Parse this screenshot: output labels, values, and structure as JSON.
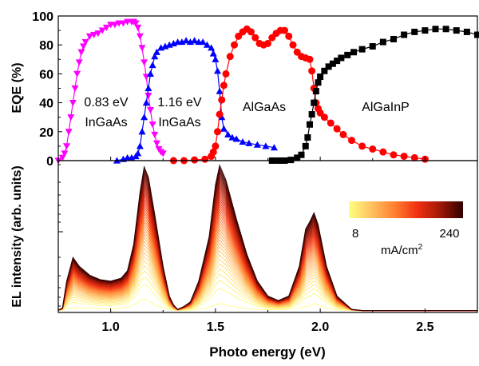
{
  "chart_data": [
    {
      "type": "scatter",
      "panel": "top",
      "ylabel": "EQE (%)",
      "xlim": [
        0.75,
        2.75
      ],
      "ylim": [
        0,
        100
      ],
      "yticks": [
        0,
        20,
        40,
        60,
        80,
        100
      ],
      "grid": false,
      "annotations": [
        {
          "lines": [
            "0.83 eV",
            "InGaAs"
          ]
        },
        {
          "lines": [
            "1.16 eV",
            "InGaAs"
          ]
        },
        {
          "lines": [
            "AlGaAs"
          ]
        },
        {
          "lines": [
            "AlGaInP"
          ]
        }
      ],
      "series": [
        {
          "color": "#ff00ff",
          "marker": "triangle-down",
          "x": [
            0.75,
            0.77,
            0.78,
            0.79,
            0.8,
            0.81,
            0.82,
            0.83,
            0.84,
            0.85,
            0.86,
            0.87,
            0.88,
            0.9,
            0.92,
            0.94,
            0.96,
            0.98,
            1.0,
            1.02,
            1.04,
            1.06,
            1.08,
            1.1,
            1.11,
            1.12,
            1.13,
            1.14,
            1.15,
            1.16,
            1.17,
            1.18,
            1.19,
            1.2,
            1.21,
            1.22,
            1.23,
            1.24,
            1.25
          ],
          "y": [
            0,
            2,
            5,
            10,
            20,
            30,
            40,
            50,
            60,
            68,
            75,
            79,
            82,
            86,
            87,
            88,
            90,
            92,
            94,
            94,
            95,
            95,
            96,
            96,
            96,
            95,
            92,
            86,
            78,
            68,
            58,
            45,
            35,
            25,
            18,
            12,
            8,
            6,
            5
          ]
        },
        {
          "color": "#0000ff",
          "marker": "triangle-up",
          "x": [
            1.03,
            1.06,
            1.08,
            1.1,
            1.12,
            1.13,
            1.14,
            1.15,
            1.16,
            1.17,
            1.18,
            1.19,
            1.2,
            1.21,
            1.22,
            1.24,
            1.26,
            1.28,
            1.3,
            1.32,
            1.34,
            1.36,
            1.38,
            1.4,
            1.42,
            1.44,
            1.46,
            1.48,
            1.49,
            1.5,
            1.51,
            1.52,
            1.53,
            1.54,
            1.56,
            1.58,
            1.6,
            1.63,
            1.66,
            1.7,
            1.74,
            1.78
          ],
          "y": [
            0,
            1,
            2,
            2,
            3,
            5,
            10,
            20,
            30,
            40,
            50,
            60,
            66,
            72,
            75,
            78,
            79,
            80,
            81,
            82,
            82,
            83,
            82,
            83,
            82,
            82,
            80,
            78,
            74,
            70,
            62,
            48,
            30,
            22,
            18,
            16,
            15,
            13,
            12,
            11,
            10,
            9
          ]
        },
        {
          "color": "#ff0000",
          "marker": "circle",
          "x": [
            1.3,
            1.35,
            1.4,
            1.45,
            1.48,
            1.49,
            1.5,
            1.51,
            1.52,
            1.53,
            1.54,
            1.55,
            1.57,
            1.59,
            1.61,
            1.63,
            1.65,
            1.67,
            1.69,
            1.71,
            1.73,
            1.75,
            1.77,
            1.79,
            1.81,
            1.83,
            1.85,
            1.87,
            1.89,
            1.91,
            1.93,
            1.95,
            1.96,
            1.97,
            1.98,
            1.99,
            2.0,
            2.02,
            2.05,
            2.08,
            2.11,
            2.15,
            2.2,
            2.25,
            2.3,
            2.35,
            2.4,
            2.45,
            2.5
          ],
          "y": [
            0,
            0,
            0.5,
            1,
            3,
            6,
            10,
            20,
            32,
            42,
            52,
            60,
            72,
            80,
            86,
            89,
            91,
            89,
            85,
            81,
            80,
            81,
            85,
            88,
            90,
            90,
            86,
            80,
            75,
            72,
            71,
            70,
            62,
            50,
            40,
            36,
            33,
            30,
            26,
            22,
            18,
            14,
            10,
            8,
            6,
            4,
            3,
            2,
            1
          ]
        },
        {
          "color": "#000000",
          "marker": "square",
          "x": [
            1.77,
            1.8,
            1.83,
            1.86,
            1.89,
            1.91,
            1.93,
            1.94,
            1.95,
            1.96,
            1.97,
            1.98,
            1.99,
            2.0,
            2.02,
            2.04,
            2.06,
            2.08,
            2.1,
            2.13,
            2.16,
            2.2,
            2.25,
            2.3,
            2.35,
            2.4,
            2.45,
            2.5,
            2.55,
            2.6,
            2.65,
            2.7,
            2.75
          ],
          "y": [
            0,
            0,
            0,
            0.5,
            2,
            4,
            10,
            16,
            25,
            32,
            40,
            48,
            54,
            58,
            62,
            65,
            67,
            69,
            71,
            73,
            75,
            77,
            79,
            82,
            84,
            87,
            89,
            90,
            91,
            91,
            90,
            89,
            87
          ]
        }
      ]
    },
    {
      "type": "line",
      "panel": "bottom",
      "xlabel": "Photo energy (eV)",
      "ylabel": "EL intensity (arb. units)",
      "yscale": "log",
      "xlim": [
        0.75,
        2.75
      ],
      "xticks": [
        "1.0",
        "1.5",
        "2.0",
        "2.5"
      ],
      "colorbar": {
        "min_label": "8",
        "max_label": "240",
        "unit": "mA/cm",
        "unit_sup": "2",
        "colors": [
          "#ffff80",
          "#ffc060",
          "#ff8030",
          "#f03010",
          "#a01808",
          "#300000"
        ]
      },
      "x": [
        0.75,
        0.77,
        0.79,
        0.82,
        0.85,
        0.9,
        0.95,
        1.0,
        1.05,
        1.08,
        1.11,
        1.14,
        1.16,
        1.18,
        1.21,
        1.25,
        1.28,
        1.3,
        1.32,
        1.35,
        1.38,
        1.42,
        1.47,
        1.5,
        1.52,
        1.55,
        1.6,
        1.65,
        1.7,
        1.75,
        1.8,
        1.85,
        1.9,
        1.93,
        1.95,
        1.97,
        1.99,
        2.03,
        2.08,
        2.15,
        2.2,
        2.75
      ],
      "max_current_curve": [
        0.5,
        2,
        20,
        36,
        30,
        24,
        21,
        20,
        22,
        27,
        45,
        80,
        97,
        90,
        65,
        30,
        10,
        4,
        1,
        3,
        6,
        20,
        50,
        85,
        98,
        88,
        62,
        38,
        20,
        10,
        7,
        10,
        30,
        55,
        60,
        66,
        58,
        30,
        10,
        1,
        0.2,
        0.2
      ],
      "min_current_curve": [
        0.2,
        0.5,
        1.5,
        2,
        2,
        1.8,
        1.6,
        1.5,
        1.8,
        2.5,
        4,
        7,
        8,
        7,
        4,
        2,
        1,
        0.5,
        0.2,
        0.3,
        0.5,
        1,
        2.5,
        4,
        5,
        4,
        2.5,
        1.5,
        1,
        0.8,
        0.8,
        1,
        2,
        3,
        3.5,
        5,
        4,
        2,
        0.8,
        0.2,
        0.1,
        0.1
      ]
    }
  ]
}
